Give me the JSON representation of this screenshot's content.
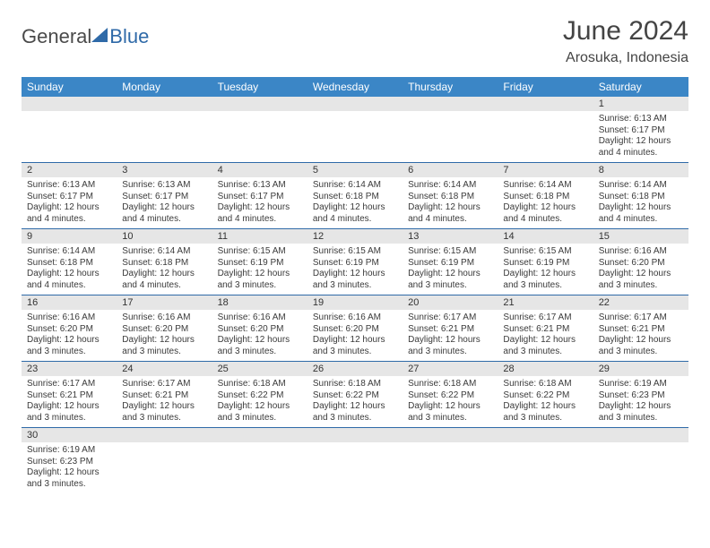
{
  "logo": {
    "part1": "General",
    "part2": "Blue"
  },
  "header": {
    "title": "June 2024",
    "location": "Arosuka, Indonesia"
  },
  "colors": {
    "header_bg": "#3b86c6",
    "header_text": "#ffffff",
    "daynum_bg": "#e6e6e6",
    "cell_border": "#2f6aa8",
    "text": "#3a3a3a"
  },
  "weekdays": [
    "Sunday",
    "Monday",
    "Tuesday",
    "Wednesday",
    "Thursday",
    "Friday",
    "Saturday"
  ],
  "weeks": [
    [
      null,
      null,
      null,
      null,
      null,
      null,
      {
        "n": "1",
        "sr": "Sunrise: 6:13 AM",
        "ss": "Sunset: 6:17 PM",
        "dl1": "Daylight: 12 hours",
        "dl2": "and 4 minutes."
      }
    ],
    [
      {
        "n": "2",
        "sr": "Sunrise: 6:13 AM",
        "ss": "Sunset: 6:17 PM",
        "dl1": "Daylight: 12 hours",
        "dl2": "and 4 minutes."
      },
      {
        "n": "3",
        "sr": "Sunrise: 6:13 AM",
        "ss": "Sunset: 6:17 PM",
        "dl1": "Daylight: 12 hours",
        "dl2": "and 4 minutes."
      },
      {
        "n": "4",
        "sr": "Sunrise: 6:13 AM",
        "ss": "Sunset: 6:17 PM",
        "dl1": "Daylight: 12 hours",
        "dl2": "and 4 minutes."
      },
      {
        "n": "5",
        "sr": "Sunrise: 6:14 AM",
        "ss": "Sunset: 6:18 PM",
        "dl1": "Daylight: 12 hours",
        "dl2": "and 4 minutes."
      },
      {
        "n": "6",
        "sr": "Sunrise: 6:14 AM",
        "ss": "Sunset: 6:18 PM",
        "dl1": "Daylight: 12 hours",
        "dl2": "and 4 minutes."
      },
      {
        "n": "7",
        "sr": "Sunrise: 6:14 AM",
        "ss": "Sunset: 6:18 PM",
        "dl1": "Daylight: 12 hours",
        "dl2": "and 4 minutes."
      },
      {
        "n": "8",
        "sr": "Sunrise: 6:14 AM",
        "ss": "Sunset: 6:18 PM",
        "dl1": "Daylight: 12 hours",
        "dl2": "and 4 minutes."
      }
    ],
    [
      {
        "n": "9",
        "sr": "Sunrise: 6:14 AM",
        "ss": "Sunset: 6:18 PM",
        "dl1": "Daylight: 12 hours",
        "dl2": "and 4 minutes."
      },
      {
        "n": "10",
        "sr": "Sunrise: 6:14 AM",
        "ss": "Sunset: 6:18 PM",
        "dl1": "Daylight: 12 hours",
        "dl2": "and 4 minutes."
      },
      {
        "n": "11",
        "sr": "Sunrise: 6:15 AM",
        "ss": "Sunset: 6:19 PM",
        "dl1": "Daylight: 12 hours",
        "dl2": "and 3 minutes."
      },
      {
        "n": "12",
        "sr": "Sunrise: 6:15 AM",
        "ss": "Sunset: 6:19 PM",
        "dl1": "Daylight: 12 hours",
        "dl2": "and 3 minutes."
      },
      {
        "n": "13",
        "sr": "Sunrise: 6:15 AM",
        "ss": "Sunset: 6:19 PM",
        "dl1": "Daylight: 12 hours",
        "dl2": "and 3 minutes."
      },
      {
        "n": "14",
        "sr": "Sunrise: 6:15 AM",
        "ss": "Sunset: 6:19 PM",
        "dl1": "Daylight: 12 hours",
        "dl2": "and 3 minutes."
      },
      {
        "n": "15",
        "sr": "Sunrise: 6:16 AM",
        "ss": "Sunset: 6:20 PM",
        "dl1": "Daylight: 12 hours",
        "dl2": "and 3 minutes."
      }
    ],
    [
      {
        "n": "16",
        "sr": "Sunrise: 6:16 AM",
        "ss": "Sunset: 6:20 PM",
        "dl1": "Daylight: 12 hours",
        "dl2": "and 3 minutes."
      },
      {
        "n": "17",
        "sr": "Sunrise: 6:16 AM",
        "ss": "Sunset: 6:20 PM",
        "dl1": "Daylight: 12 hours",
        "dl2": "and 3 minutes."
      },
      {
        "n": "18",
        "sr": "Sunrise: 6:16 AM",
        "ss": "Sunset: 6:20 PM",
        "dl1": "Daylight: 12 hours",
        "dl2": "and 3 minutes."
      },
      {
        "n": "19",
        "sr": "Sunrise: 6:16 AM",
        "ss": "Sunset: 6:20 PM",
        "dl1": "Daylight: 12 hours",
        "dl2": "and 3 minutes."
      },
      {
        "n": "20",
        "sr": "Sunrise: 6:17 AM",
        "ss": "Sunset: 6:21 PM",
        "dl1": "Daylight: 12 hours",
        "dl2": "and 3 minutes."
      },
      {
        "n": "21",
        "sr": "Sunrise: 6:17 AM",
        "ss": "Sunset: 6:21 PM",
        "dl1": "Daylight: 12 hours",
        "dl2": "and 3 minutes."
      },
      {
        "n": "22",
        "sr": "Sunrise: 6:17 AM",
        "ss": "Sunset: 6:21 PM",
        "dl1": "Daylight: 12 hours",
        "dl2": "and 3 minutes."
      }
    ],
    [
      {
        "n": "23",
        "sr": "Sunrise: 6:17 AM",
        "ss": "Sunset: 6:21 PM",
        "dl1": "Daylight: 12 hours",
        "dl2": "and 3 minutes."
      },
      {
        "n": "24",
        "sr": "Sunrise: 6:17 AM",
        "ss": "Sunset: 6:21 PM",
        "dl1": "Daylight: 12 hours",
        "dl2": "and 3 minutes."
      },
      {
        "n": "25",
        "sr": "Sunrise: 6:18 AM",
        "ss": "Sunset: 6:22 PM",
        "dl1": "Daylight: 12 hours",
        "dl2": "and 3 minutes."
      },
      {
        "n": "26",
        "sr": "Sunrise: 6:18 AM",
        "ss": "Sunset: 6:22 PM",
        "dl1": "Daylight: 12 hours",
        "dl2": "and 3 minutes."
      },
      {
        "n": "27",
        "sr": "Sunrise: 6:18 AM",
        "ss": "Sunset: 6:22 PM",
        "dl1": "Daylight: 12 hours",
        "dl2": "and 3 minutes."
      },
      {
        "n": "28",
        "sr": "Sunrise: 6:18 AM",
        "ss": "Sunset: 6:22 PM",
        "dl1": "Daylight: 12 hours",
        "dl2": "and 3 minutes."
      },
      {
        "n": "29",
        "sr": "Sunrise: 6:19 AM",
        "ss": "Sunset: 6:23 PM",
        "dl1": "Daylight: 12 hours",
        "dl2": "and 3 minutes."
      }
    ],
    [
      {
        "n": "30",
        "sr": "Sunrise: 6:19 AM",
        "ss": "Sunset: 6:23 PM",
        "dl1": "Daylight: 12 hours",
        "dl2": "and 3 minutes."
      },
      null,
      null,
      null,
      null,
      null,
      null
    ]
  ]
}
